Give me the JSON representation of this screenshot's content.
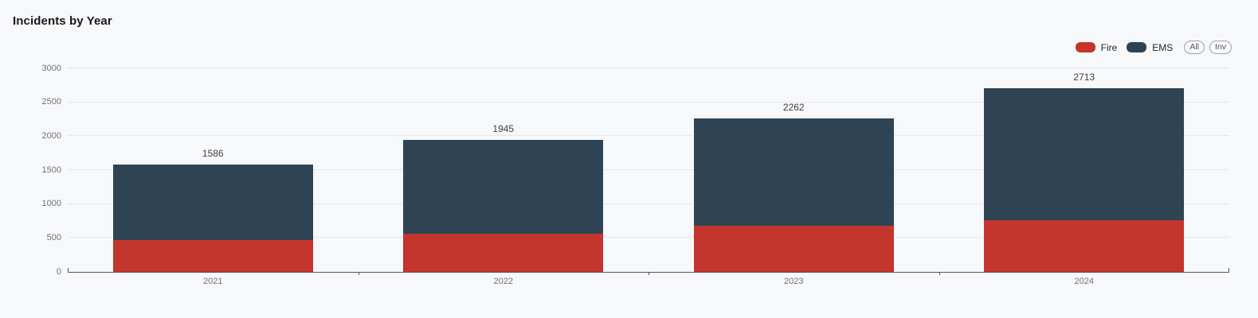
{
  "title": "Incidents by Year",
  "legend": {
    "buttons": [
      {
        "id": "all",
        "label": "All"
      },
      {
        "id": "inv",
        "label": "Inv"
      }
    ]
  },
  "colors": {
    "background": "#f7f8f9",
    "fire": "#c3352d",
    "ems": "#2e4454",
    "gridline": "#e7e8ee",
    "axis": "#55555b",
    "tick_label": "#71717a",
    "total_label": "#3f3f46"
  },
  "chart_data": {
    "type": "bar",
    "stacked": true,
    "title": "Incidents by Year",
    "categories": [
      "2021",
      "2022",
      "2023",
      "2024"
    ],
    "series": [
      {
        "name": "Fire",
        "color": "#c3352d",
        "values": [
          470,
          565,
          680,
          765
        ]
      },
      {
        "name": "EMS",
        "color": "#2e4454",
        "values": [
          1116,
          1380,
          1582,
          1948
        ]
      }
    ],
    "totals": [
      1586,
      1945,
      2262,
      2713
    ],
    "total_labels": [
      "1586",
      "1945",
      "2262",
      "2713"
    ],
    "xlabel": "",
    "ylabel": "",
    "ylim": [
      0,
      3000
    ],
    "yticks": [
      0,
      500,
      1000,
      1500,
      2000,
      2500,
      3000
    ],
    "grid": true,
    "legend_position": "top-right"
  }
}
